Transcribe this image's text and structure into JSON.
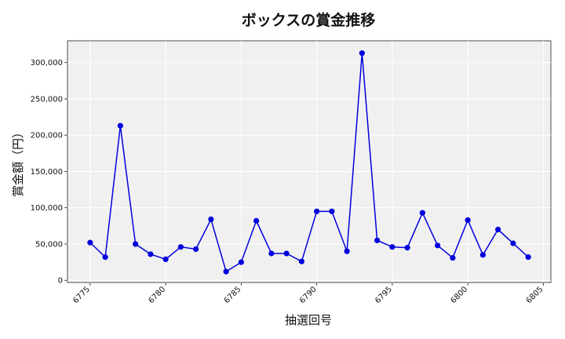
{
  "chart_data": {
    "type": "line",
    "title": "ボックスの賞金推移",
    "xlabel": "抽選回号",
    "ylabel": "賞金額（円）",
    "x": [
      6775,
      6776,
      6777,
      6778,
      6779,
      6780,
      6781,
      6782,
      6783,
      6784,
      6785,
      6786,
      6787,
      6788,
      6789,
      6790,
      6791,
      6792,
      6793,
      6794,
      6795,
      6796,
      6797,
      6798,
      6799,
      6800,
      6801,
      6802,
      6803,
      6804
    ],
    "series": [
      {
        "values": [
          52000,
          32000,
          213000,
          50000,
          36000,
          29000,
          46000,
          43000,
          84000,
          12000,
          25000,
          82000,
          37000,
          37000,
          26000,
          95000,
          95000,
          40000,
          313000,
          55000,
          46000,
          45000,
          93000,
          48000,
          31000,
          83000,
          35000,
          70000,
          51000,
          32000
        ],
        "color": "#0000dd"
      }
    ],
    "xlim": [
      6773.5,
      6805.5
    ],
    "ylim": [
      -3000,
      330000
    ],
    "x_ticks": [
      6775,
      6780,
      6785,
      6790,
      6795,
      6800,
      6805
    ],
    "x_tick_labels": [
      "6775",
      "6780",
      "6785",
      "6790",
      "6795",
      "6800",
      "6805"
    ],
    "y_ticks": [
      0,
      50000,
      100000,
      150000,
      200000,
      250000,
      300000
    ],
    "y_tick_labels": [
      "0",
      "50,000",
      "100,000",
      "150,000",
      "200,000",
      "250,000",
      "300,000"
    ],
    "grid": true,
    "background": "#f0f0f0"
  }
}
